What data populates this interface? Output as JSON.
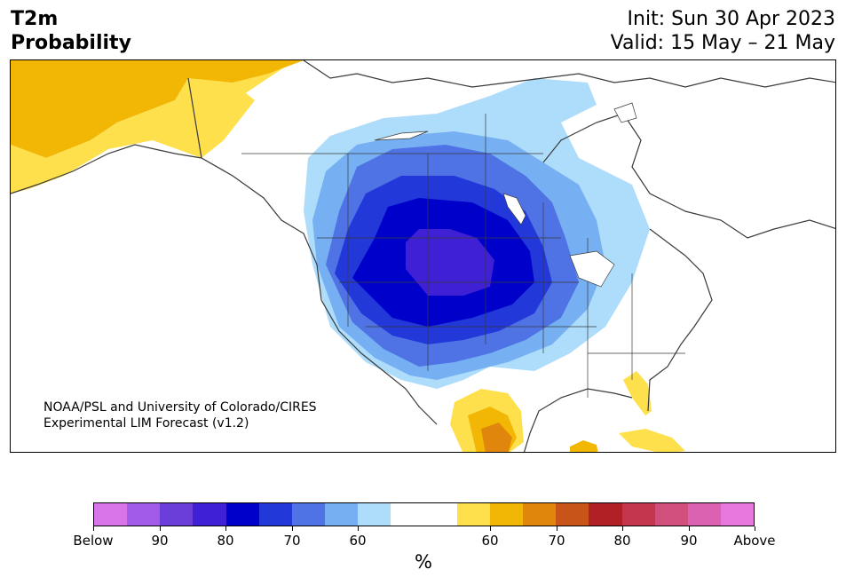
{
  "header": {
    "title_line1": "T2m",
    "title_line2": "Probability",
    "init": "Init: Sun 30 Apr 2023",
    "valid": "Valid: 15 May – 21 May"
  },
  "map": {
    "credit_line1": "NOAA/PSL and University of Colorado/CIRES",
    "credit_line2": "Experimental LIM Forecast (v1.2)",
    "colors": {
      "below_60": "#aedcfb",
      "below_70": "#76b0f2",
      "below_70b": "#4f73e5",
      "below_80": "#2238d9",
      "below_90": "#0000cb",
      "below_90b": "#3f20d4",
      "above_60": "#fde04c",
      "above_70": "#f2b705",
      "above_80": "#e0860d",
      "outline": "#3a3a3a"
    }
  },
  "colorbar": {
    "colors": [
      "#d674e8",
      "#a15be6",
      "#6b3dd9",
      "#3f20d4",
      "#0000cb",
      "#2238d9",
      "#4f73e5",
      "#76b0f2",
      "#aedcfb",
      "#ffffff",
      "#ffffff",
      "#fde04c",
      "#f2b705",
      "#e0860d",
      "#c95419",
      "#b02025",
      "#c4364e",
      "#d04f7c",
      "#db62b0",
      "#e877de"
    ],
    "labels": [
      "Below",
      "90",
      "80",
      "70",
      "60",
      "60",
      "70",
      "80",
      "90",
      "Above"
    ],
    "axis_label": "%"
  }
}
